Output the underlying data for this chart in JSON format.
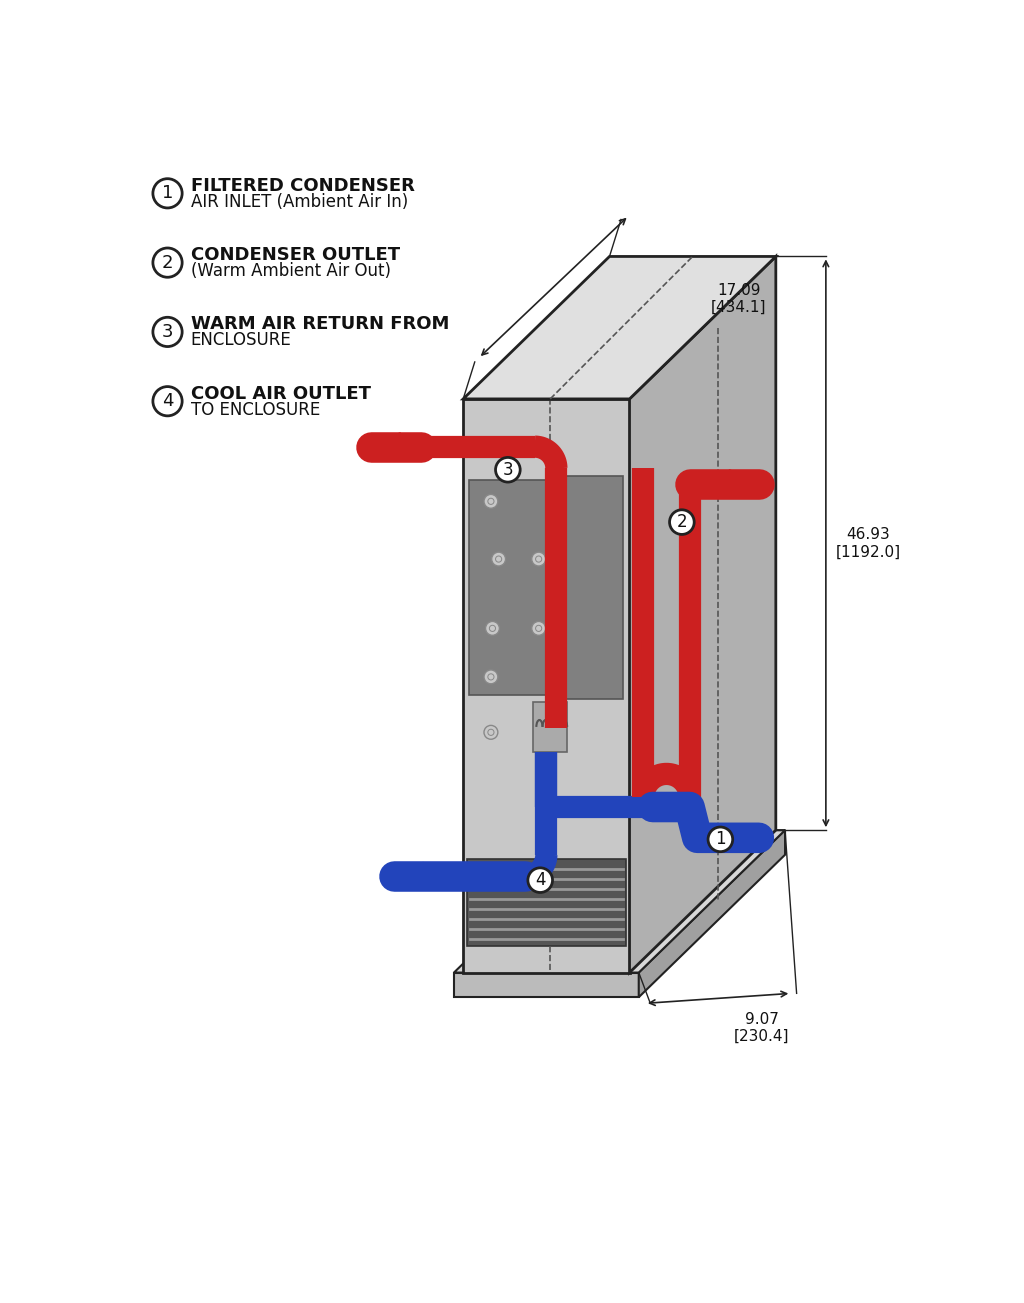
{
  "bg_color": "#ffffff",
  "legend_items": [
    {
      "num": "1",
      "text1": "FILTERED CONDENSER",
      "text2": "AIR INLET (Ambient Air In)"
    },
    {
      "num": "2",
      "text1": "CONDENSER OUTLET",
      "text2": "(Warm Ambient Air Out)"
    },
    {
      "num": "3",
      "text1": "WARM AIR RETURN FROM",
      "text2": "ENCLOSURE"
    },
    {
      "num": "4",
      "text1": "COOL AIR OUTLET",
      "text2": "TO ENCLOSURE"
    }
  ],
  "red_color": "#cc2020",
  "blue_color": "#2244bb",
  "outline_color": "#222222",
  "front_fill": "#c8c8c8",
  "side_fill": "#b0b0b0",
  "top_fill": "#e0e0e0",
  "plinth_front": "#bbbbbb",
  "plinth_side": "#a0a0a0",
  "plinth_top": "#d8d8d8",
  "dark_panel": "#808080",
  "grille_fill": "#555555",
  "dim_text_size": 11,
  "legend_text_size": 13
}
